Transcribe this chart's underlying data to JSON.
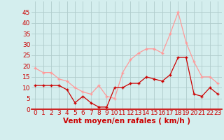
{
  "hours": [
    0,
    1,
    2,
    3,
    4,
    5,
    6,
    7,
    8,
    9,
    10,
    11,
    12,
    13,
    14,
    15,
    16,
    17,
    18,
    19,
    20,
    21,
    22,
    23
  ],
  "vent_moyen": [
    11,
    11,
    11,
    11,
    9,
    3,
    6,
    3,
    1,
    1,
    10,
    10,
    12,
    12,
    15,
    14,
    13,
    16,
    24,
    24,
    7,
    6,
    10,
    7
  ],
  "en_rafales": [
    19,
    17,
    17,
    14,
    13,
    10,
    8,
    7,
    11,
    6,
    5,
    17,
    23,
    26,
    28,
    28,
    26,
    35,
    45,
    31,
    22,
    15,
    15,
    12
  ],
  "moyen_color": "#cc0000",
  "rafales_color": "#ff9999",
  "background_color": "#d4eeee",
  "grid_color": "#b0cccc",
  "xlabel": "Vent moyen/en rafales ( km/h )",
  "ylim": [
    0,
    50
  ],
  "yticks": [
    0,
    5,
    10,
    15,
    20,
    25,
    30,
    35,
    40,
    45
  ],
  "tick_fontsize": 6.5,
  "xlabel_fontsize": 7.5
}
